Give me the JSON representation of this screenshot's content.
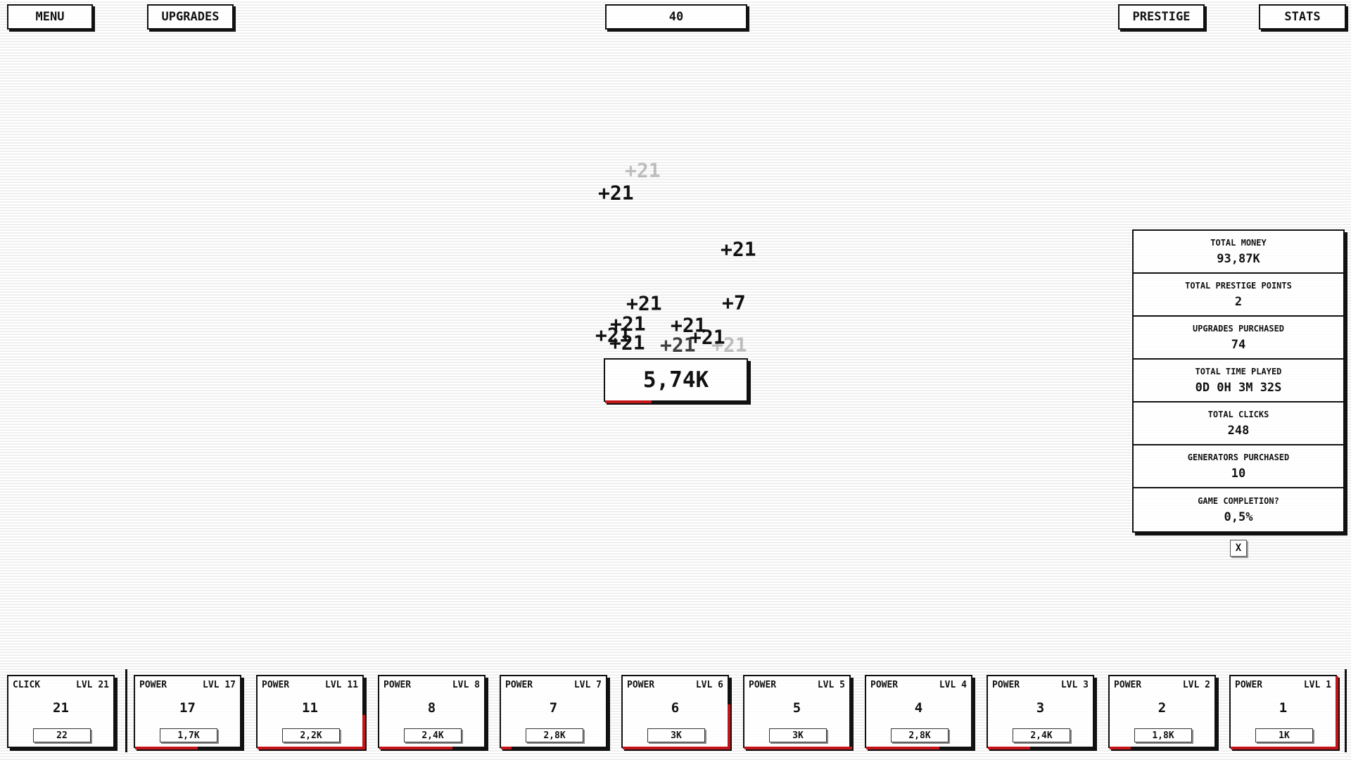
{
  "header": {
    "menu_label": "MENU",
    "upgrades_label": "UPGRADES",
    "counter": "40",
    "prestige_label": "PRESTIGE",
    "stats_label": "STATS"
  },
  "main": {
    "money": "5,74K",
    "money_progress": 0.33,
    "floating_texts": [
      {
        "text": "+21",
        "opacity": 0.25
      },
      {
        "text": "+21",
        "opacity": 1
      },
      {
        "text": "+21",
        "opacity": 1
      },
      {
        "text": "+21",
        "opacity": 1
      },
      {
        "text": "+7",
        "opacity": 1
      },
      {
        "text": "+21",
        "opacity": 1
      },
      {
        "text": "+21",
        "opacity": 1
      },
      {
        "text": "+21",
        "opacity": 1
      },
      {
        "text": "+21",
        "opacity": 1
      },
      {
        "text": "+21",
        "opacity": 1
      },
      {
        "text": "+21",
        "opacity": 0.8
      },
      {
        "text": "+21",
        "opacity": 0.25
      }
    ]
  },
  "stats_panel": {
    "rows": [
      {
        "label": "TOTAL MONEY",
        "value": "93,87K"
      },
      {
        "label": "TOTAL PRESTIGE POINTS",
        "value": "2"
      },
      {
        "label": "UPGRADES PURCHASED",
        "value": "74"
      },
      {
        "label": "TOTAL TIME PLAYED",
        "value": "0D 0H 3M 32S"
      },
      {
        "label": "TOTAL CLICKS",
        "value": "248"
      },
      {
        "label": "GENERATORS PURCHASED",
        "value": "10"
      },
      {
        "label": "GAME COMPLETION?",
        "value": "0,5%"
      }
    ],
    "close_label": "X"
  },
  "cards": [
    {
      "type": "CLICK",
      "level": "LVL 21",
      "value": "21",
      "cost": "22",
      "progress_bottom": 0,
      "progress_side": 0
    },
    {
      "type": "POWER",
      "level": "LVL 17",
      "value": "17",
      "cost": "1,7K",
      "progress_bottom": 0.6,
      "progress_side": 0
    },
    {
      "type": "POWER",
      "level": "LVL 11",
      "value": "11",
      "cost": "2,2K",
      "progress_bottom": 1,
      "progress_side": 0.45
    },
    {
      "type": "POWER",
      "level": "LVL 8",
      "value": "8",
      "cost": "2,4K",
      "progress_bottom": 0.7,
      "progress_side": 0
    },
    {
      "type": "POWER",
      "level": "LVL 7",
      "value": "7",
      "cost": "2,8K",
      "progress_bottom": 0.1,
      "progress_side": 0
    },
    {
      "type": "POWER",
      "level": "LVL 6",
      "value": "6",
      "cost": "3K",
      "progress_bottom": 1,
      "progress_side": 0.6
    },
    {
      "type": "POWER",
      "level": "LVL 5",
      "value": "5",
      "cost": "3K",
      "progress_bottom": 1,
      "progress_side": 0
    },
    {
      "type": "POWER",
      "level": "LVL 4",
      "value": "4",
      "cost": "2,8K",
      "progress_bottom": 0.7,
      "progress_side": 0
    },
    {
      "type": "POWER",
      "level": "LVL 3",
      "value": "3",
      "cost": "2,4K",
      "progress_bottom": 0.4,
      "progress_side": 0
    },
    {
      "type": "POWER",
      "level": "LVL 2",
      "value": "2",
      "cost": "1,8K",
      "progress_bottom": 0.2,
      "progress_side": 0
    },
    {
      "type": "POWER",
      "level": "LVL 1",
      "value": "1",
      "cost": "1K",
      "progress_bottom": 1,
      "progress_side": 1
    }
  ],
  "colors": {
    "progress": "#c4141a",
    "ink": "#111111"
  }
}
